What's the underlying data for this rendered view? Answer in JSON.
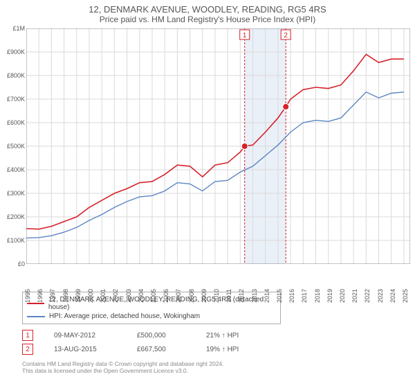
{
  "title_line1": "12, DENMARK AVENUE, WOODLEY, READING, RG5 4RS",
  "title_line2": "Price paid vs. HM Land Registry's House Price Index (HPI)",
  "chart": {
    "ylim": [
      0,
      1000000
    ],
    "ytick_step": 100000,
    "y_tick_labels": [
      "£0",
      "£100K",
      "£200K",
      "£300K",
      "£400K",
      "£500K",
      "£600K",
      "£700K",
      "£800K",
      "£900K",
      "£1M"
    ],
    "xmin": 1995,
    "xmax": 2025.5,
    "x_tick_labels": [
      "1995",
      "1996",
      "1997",
      "1998",
      "1999",
      "2000",
      "2001",
      "2002",
      "2003",
      "2004",
      "2005",
      "2006",
      "2007",
      "2008",
      "2009",
      "2010",
      "2011",
      "2012",
      "2013",
      "2014",
      "2015",
      "2016",
      "2017",
      "2018",
      "2019",
      "2020",
      "2021",
      "2022",
      "2023",
      "2024",
      "2025"
    ],
    "background_color": "#ffffff",
    "grid_color": "#d9d9d9",
    "axis_color": "#888888",
    "shaded_band": {
      "x_start": 2012.35,
      "x_end": 2015.62,
      "color": "#eaf0f8"
    },
    "vlines": [
      {
        "x": 2012.35,
        "color": "#d6202a",
        "label_color": "#d6202a",
        "num": "1"
      },
      {
        "x": 2015.62,
        "color": "#d6202a",
        "label_color": "#d6202a",
        "num": "2"
      }
    ],
    "series_red": {
      "color": "#d6202a",
      "width": 1.6,
      "points": [
        [
          1995,
          150000
        ],
        [
          1996,
          148000
        ],
        [
          1997,
          160000
        ],
        [
          1998,
          180000
        ],
        [
          1999,
          200000
        ],
        [
          2000,
          240000
        ],
        [
          2001,
          270000
        ],
        [
          2002,
          300000
        ],
        [
          2003,
          320000
        ],
        [
          2004,
          345000
        ],
        [
          2005,
          350000
        ],
        [
          2006,
          380000
        ],
        [
          2007,
          420000
        ],
        [
          2008,
          415000
        ],
        [
          2009,
          370000
        ],
        [
          2010,
          420000
        ],
        [
          2011,
          430000
        ],
        [
          2012,
          475000
        ],
        [
          2012.35,
          500000
        ],
        [
          2013,
          505000
        ],
        [
          2014,
          560000
        ],
        [
          2015,
          620000
        ],
        [
          2015.62,
          667500
        ],
        [
          2016,
          700000
        ],
        [
          2017,
          740000
        ],
        [
          2018,
          750000
        ],
        [
          2019,
          745000
        ],
        [
          2020,
          760000
        ],
        [
          2021,
          820000
        ],
        [
          2022,
          890000
        ],
        [
          2023,
          855000
        ],
        [
          2024,
          870000
        ],
        [
          2025,
          870000
        ]
      ]
    },
    "series_blue": {
      "color": "#5b85c2",
      "width": 1.4,
      "points": [
        [
          1995,
          110000
        ],
        [
          1996,
          112000
        ],
        [
          1997,
          120000
        ],
        [
          1998,
          135000
        ],
        [
          1999,
          155000
        ],
        [
          2000,
          185000
        ],
        [
          2001,
          210000
        ],
        [
          2002,
          240000
        ],
        [
          2003,
          265000
        ],
        [
          2004,
          285000
        ],
        [
          2005,
          290000
        ],
        [
          2006,
          310000
        ],
        [
          2007,
          345000
        ],
        [
          2008,
          340000
        ],
        [
          2009,
          310000
        ],
        [
          2010,
          350000
        ],
        [
          2011,
          355000
        ],
        [
          2012,
          390000
        ],
        [
          2013,
          415000
        ],
        [
          2014,
          460000
        ],
        [
          2015,
          505000
        ],
        [
          2016,
          560000
        ],
        [
          2017,
          600000
        ],
        [
          2018,
          610000
        ],
        [
          2019,
          605000
        ],
        [
          2020,
          620000
        ],
        [
          2021,
          675000
        ],
        [
          2022,
          730000
        ],
        [
          2023,
          705000
        ],
        [
          2024,
          725000
        ],
        [
          2025,
          730000
        ]
      ]
    },
    "markers": [
      {
        "x": 2012.35,
        "y": 500000,
        "color": "#d6202a"
      },
      {
        "x": 2015.62,
        "y": 667500,
        "color": "#d6202a"
      }
    ]
  },
  "legend": {
    "red_label": "12, DENMARK AVENUE, WOODLEY, READING, RG5 4RS (detached house)",
    "red_color": "#d6202a",
    "blue_label": "HPI: Average price, detached house, Wokingham",
    "blue_color": "#5b85c2"
  },
  "sales": [
    {
      "num": "1",
      "date": "09-MAY-2012",
      "price": "£500,000",
      "delta": "21% ↑ HPI",
      "color": "#d6202a"
    },
    {
      "num": "2",
      "date": "13-AUG-2015",
      "price": "£667,500",
      "delta": "19% ↑ HPI",
      "color": "#d6202a"
    }
  ],
  "footer_line1": "Contains HM Land Registry data © Crown copyright and database right 2024.",
  "footer_line2": "This data is licensed under the Open Government Licence v3.0."
}
